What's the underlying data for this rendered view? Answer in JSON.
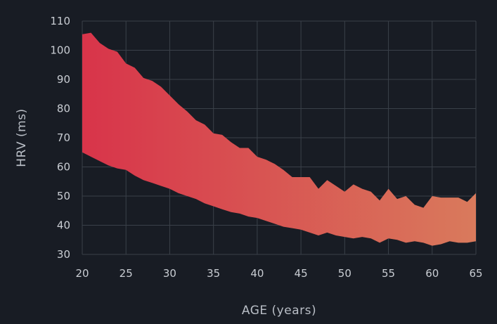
{
  "chart_data": {
    "type": "area",
    "xlabel": "AGE (years)",
    "ylabel": "HRV (ms)",
    "xlim": [
      20,
      65
    ],
    "ylim": [
      30,
      110
    ],
    "xticks": [
      20,
      25,
      30,
      35,
      40,
      45,
      50,
      55,
      60,
      65
    ],
    "yticks": [
      30,
      40,
      50,
      60,
      70,
      80,
      90,
      100,
      110
    ],
    "grid": true,
    "band": {
      "color_start": "#d8344a",
      "color_end": "#d97a5c",
      "upper": [
        [
          20,
          105.5
        ],
        [
          21,
          106
        ],
        [
          22,
          102.5
        ],
        [
          23,
          100.5
        ],
        [
          24,
          99.5
        ],
        [
          25,
          95.5
        ],
        [
          26,
          94
        ],
        [
          27,
          90.5
        ],
        [
          28,
          89.5
        ],
        [
          29,
          87.5
        ],
        [
          30,
          84.5
        ],
        [
          31,
          81.5
        ],
        [
          32,
          79
        ],
        [
          33,
          76
        ],
        [
          34,
          74.5
        ],
        [
          35,
          71.5
        ],
        [
          36,
          71
        ],
        [
          37,
          68.5
        ],
        [
          38,
          66.5
        ],
        [
          39,
          66.5
        ],
        [
          40,
          63.5
        ],
        [
          41,
          62.5
        ],
        [
          42,
          61
        ],
        [
          43,
          59
        ],
        [
          44,
          56.5
        ],
        [
          45,
          56.5
        ],
        [
          46,
          56.5
        ],
        [
          47,
          52.5
        ],
        [
          48,
          55.5
        ],
        [
          49,
          53.5
        ],
        [
          50,
          51.5
        ],
        [
          51,
          54
        ],
        [
          52,
          52.5
        ],
        [
          53,
          51.5
        ],
        [
          54,
          48.5
        ],
        [
          55,
          52.5
        ],
        [
          56,
          49
        ],
        [
          57,
          50
        ],
        [
          58,
          47
        ],
        [
          59,
          46
        ],
        [
          60,
          50
        ],
        [
          61,
          49.5
        ],
        [
          62,
          49.5
        ],
        [
          63,
          49.5
        ],
        [
          64,
          48
        ],
        [
          65,
          51
        ]
      ],
      "lower": [
        [
          20,
          65
        ],
        [
          21,
          63.5
        ],
        [
          22,
          62
        ],
        [
          23,
          60.5
        ],
        [
          24,
          59.5
        ],
        [
          25,
          59
        ],
        [
          26,
          57
        ],
        [
          27,
          55.5
        ],
        [
          28,
          54.5
        ],
        [
          29,
          53.5
        ],
        [
          30,
          52.5
        ],
        [
          31,
          51
        ],
        [
          32,
          50
        ],
        [
          33,
          49
        ],
        [
          34,
          47.5
        ],
        [
          35,
          46.5
        ],
        [
          36,
          45.5
        ],
        [
          37,
          44.5
        ],
        [
          38,
          44
        ],
        [
          39,
          43
        ],
        [
          40,
          42.5
        ],
        [
          41,
          41.5
        ],
        [
          42,
          40.5
        ],
        [
          43,
          39.5
        ],
        [
          44,
          39
        ],
        [
          45,
          38.5
        ],
        [
          46,
          37.5
        ],
        [
          47,
          36.5
        ],
        [
          48,
          37.5
        ],
        [
          49,
          36.5
        ],
        [
          50,
          36
        ],
        [
          51,
          35.5
        ],
        [
          52,
          36
        ],
        [
          53,
          35.5
        ],
        [
          54,
          34
        ],
        [
          55,
          35.5
        ],
        [
          56,
          35
        ],
        [
          57,
          34
        ],
        [
          58,
          34.5
        ],
        [
          59,
          34
        ],
        [
          60,
          33
        ],
        [
          61,
          33.5
        ],
        [
          62,
          34.5
        ],
        [
          63,
          34
        ],
        [
          64,
          34
        ],
        [
          65,
          34.5
        ]
      ]
    }
  }
}
